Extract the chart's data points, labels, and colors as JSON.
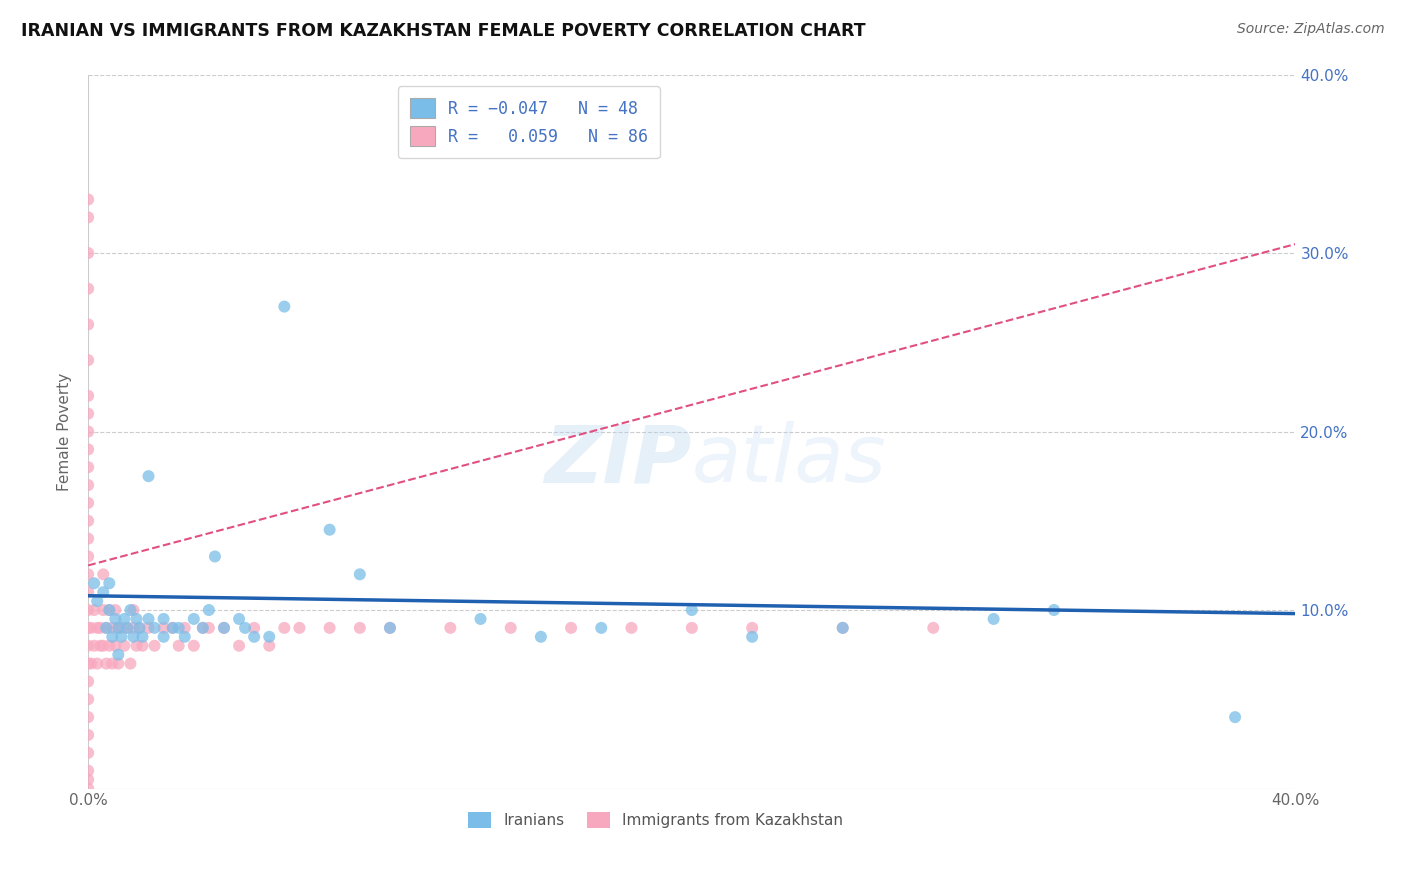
{
  "title": "IRANIAN VS IMMIGRANTS FROM KAZAKHSTAN FEMALE POVERTY CORRELATION CHART",
  "source": "Source: ZipAtlas.com",
  "ylabel": "Female Poverty",
  "x_min": 0.0,
  "x_max": 0.4,
  "y_min": 0.0,
  "y_max": 0.4,
  "color_iranian": "#7abde8",
  "color_kazakhstan": "#f8a8be",
  "color_trendline_iranian": "#2060b0",
  "color_trendline_kazakhstan": "#e05080",
  "background_color": "#ffffff",
  "watermark_text": "ZIPatlas",
  "iranians_x": [
    0.002,
    0.003,
    0.005,
    0.006,
    0.007,
    0.007,
    0.008,
    0.009,
    0.01,
    0.01,
    0.011,
    0.012,
    0.013,
    0.014,
    0.015,
    0.016,
    0.017,
    0.018,
    0.02,
    0.02,
    0.022,
    0.025,
    0.025,
    0.028,
    0.03,
    0.032,
    0.035,
    0.038,
    0.04,
    0.042,
    0.045,
    0.05,
    0.052,
    0.055,
    0.06,
    0.065,
    0.08,
    0.09,
    0.1,
    0.13,
    0.15,
    0.17,
    0.2,
    0.22,
    0.25,
    0.3,
    0.32,
    0.38
  ],
  "iranians_y": [
    0.115,
    0.105,
    0.11,
    0.09,
    0.1,
    0.115,
    0.085,
    0.095,
    0.075,
    0.09,
    0.085,
    0.095,
    0.09,
    0.1,
    0.085,
    0.095,
    0.09,
    0.085,
    0.095,
    0.175,
    0.09,
    0.085,
    0.095,
    0.09,
    0.09,
    0.085,
    0.095,
    0.09,
    0.1,
    0.13,
    0.09,
    0.095,
    0.09,
    0.085,
    0.085,
    0.27,
    0.145,
    0.12,
    0.09,
    0.095,
    0.085,
    0.09,
    0.1,
    0.085,
    0.09,
    0.095,
    0.1,
    0.04
  ],
  "kazakhstan_x": [
    0.0,
    0.0,
    0.0,
    0.0,
    0.0,
    0.0,
    0.0,
    0.0,
    0.0,
    0.0,
    0.0,
    0.0,
    0.0,
    0.0,
    0.0,
    0.0,
    0.0,
    0.0,
    0.0,
    0.0,
    0.0,
    0.0,
    0.0,
    0.0,
    0.0,
    0.0,
    0.0,
    0.0,
    0.0,
    0.0,
    0.001,
    0.001,
    0.002,
    0.002,
    0.003,
    0.003,
    0.004,
    0.004,
    0.005,
    0.005,
    0.005,
    0.006,
    0.006,
    0.007,
    0.007,
    0.008,
    0.008,
    0.009,
    0.009,
    0.01,
    0.01,
    0.011,
    0.012,
    0.013,
    0.014,
    0.015,
    0.015,
    0.016,
    0.017,
    0.018,
    0.02,
    0.022,
    0.025,
    0.028,
    0.03,
    0.032,
    0.035,
    0.038,
    0.04,
    0.045,
    0.05,
    0.055,
    0.06,
    0.065,
    0.07,
    0.08,
    0.09,
    0.1,
    0.12,
    0.14,
    0.16,
    0.18,
    0.2,
    0.22,
    0.25,
    0.28
  ],
  "kazakhstan_y": [
    0.07,
    0.08,
    0.09,
    0.1,
    0.11,
    0.12,
    0.13,
    0.14,
    0.15,
    0.16,
    0.17,
    0.18,
    0.19,
    0.2,
    0.21,
    0.22,
    0.24,
    0.26,
    0.28,
    0.3,
    0.32,
    0.33,
    0.05,
    0.06,
    0.04,
    0.03,
    0.02,
    0.01,
    0.005,
    0.0,
    0.09,
    0.07,
    0.1,
    0.08,
    0.09,
    0.07,
    0.09,
    0.08,
    0.1,
    0.08,
    0.12,
    0.09,
    0.07,
    0.1,
    0.08,
    0.09,
    0.07,
    0.08,
    0.1,
    0.09,
    0.07,
    0.09,
    0.08,
    0.09,
    0.07,
    0.09,
    0.1,
    0.08,
    0.09,
    0.08,
    0.09,
    0.08,
    0.09,
    0.09,
    0.08,
    0.09,
    0.08,
    0.09,
    0.09,
    0.09,
    0.08,
    0.09,
    0.08,
    0.09,
    0.09,
    0.09,
    0.09,
    0.09,
    0.09,
    0.09,
    0.09,
    0.09,
    0.09,
    0.09,
    0.09,
    0.09
  ],
  "trend_iranian_y0": 0.108,
  "trend_iranian_y1": 0.098,
  "trend_kaz_y0": 0.125,
  "trend_kaz_y1": 0.305,
  "legend_label_1": "Iranians",
  "legend_label_2": "Immigrants from Kazakhstan"
}
